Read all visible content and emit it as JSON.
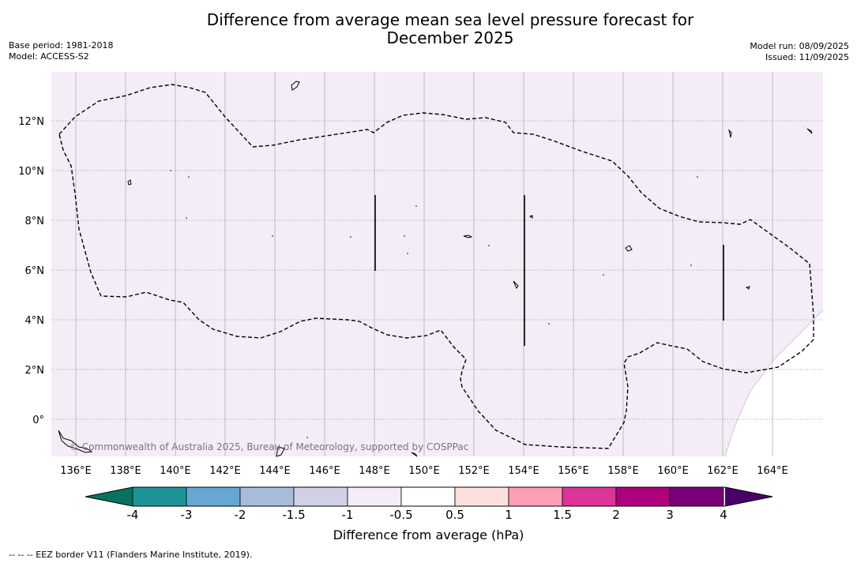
{
  "title_line1": "Difference from average mean sea level pressure forecast for",
  "title_line2": "December 2025",
  "base_period": "Base period: 1981-2018",
  "model": "Model: ACCESS-S2",
  "model_run": "Model run: 08/09/2025",
  "issued": "Issued: 11/09/2025",
  "copyright": "© Commonwealth of Australia 2025, Bureau of Meteorology, supported by COSPPac",
  "footnote": "--  --  -- EEZ border V11 (Flanders Marine Institute, 2019).",
  "colorbar_label": "Difference from average (hPa)",
  "x_ticks": [
    "136°E",
    "138°E",
    "140°E",
    "142°E",
    "144°E",
    "146°E",
    "148°E",
    "150°E",
    "152°E",
    "154°E",
    "156°E",
    "158°E",
    "160°E",
    "162°E",
    "164°E"
  ],
  "y_ticks": [
    "12°N",
    "10°N",
    "8°N",
    "6°N",
    "4°N",
    "2°N",
    "0°"
  ],
  "colorbar_ticks": [
    "-4",
    "-3",
    "-2",
    "-1.5",
    "-1",
    "-0.5",
    "0.5",
    "1",
    "1.5",
    "2",
    "3",
    "4"
  ],
  "colorbar_colors": [
    "#1e9398",
    "#65a9d3",
    "#a7bcdb",
    "#d0d1e6",
    "#f4ecf6",
    "#ffffff",
    "#fde0dd",
    "#fa9fb5",
    "#dd3497",
    "#ae017e",
    "#7a0177"
  ],
  "colorbar_extend_low": "#04735f",
  "colorbar_extend_high": "#49006a",
  "map_fill": "#f4ecf6",
  "chart_data": {
    "type": "map",
    "extent_lon": [
      135.0,
      166.0
    ],
    "extent_lat": [
      -1.5,
      14.0
    ],
    "forecast_field": "-0.5 to 0.5 hPa category... (uniform pale lavender = -1 to -0.5 hPa)",
    "gridlines": true
  }
}
